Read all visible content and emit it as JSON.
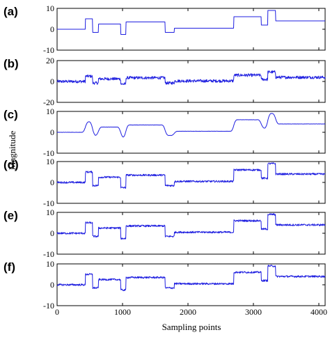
{
  "figure": {
    "xlabel": "Sampling points",
    "ylabel": "Magnitude"
  },
  "chart_data": [
    {
      "panel": "(a)",
      "type": "line",
      "xlim": [
        0,
        4096
      ],
      "ylim": [
        -10,
        10
      ],
      "yticks": [
        "10",
        "0",
        "-10"
      ],
      "xticks": [],
      "series": [
        {
          "color": "#1f1fe0",
          "noise": 0,
          "smooth": 0,
          "steps": [
            [
              0,
              0
            ],
            [
              430,
              5
            ],
            [
              540,
              -1.5
            ],
            [
              630,
              2.5
            ],
            [
              970,
              -2.5
            ],
            [
              1050,
              3.5
            ],
            [
              1650,
              -1.5
            ],
            [
              1790,
              0.5
            ],
            [
              2700,
              6
            ],
            [
              3120,
              2
            ],
            [
              3220,
              9
            ],
            [
              3340,
              4
            ],
            [
              4096,
              4
            ]
          ]
        }
      ]
    },
    {
      "panel": "(b)",
      "type": "line",
      "xlim": [
        0,
        4096
      ],
      "ylim": [
        -20,
        20
      ],
      "yticks": [
        "20",
        "0",
        "-20"
      ],
      "xticks": [],
      "series": [
        {
          "color": "#1f1fe0",
          "noise": 1.4,
          "smooth": 0,
          "steps": [
            [
              0,
              0
            ],
            [
              430,
              5
            ],
            [
              540,
              -1.5
            ],
            [
              630,
              2.5
            ],
            [
              970,
              -2.5
            ],
            [
              1050,
              3.5
            ],
            [
              1650,
              -1.5
            ],
            [
              1790,
              0.5
            ],
            [
              2700,
              6
            ],
            [
              3120,
              2
            ],
            [
              3220,
              9
            ],
            [
              3340,
              4
            ],
            [
              4096,
              4
            ]
          ]
        }
      ]
    },
    {
      "panel": "(c)",
      "type": "line",
      "xlim": [
        0,
        4096
      ],
      "ylim": [
        -10,
        10
      ],
      "yticks": [
        "10",
        "0",
        "-10"
      ],
      "xticks": [],
      "series": [
        {
          "color": "#1f1fe0",
          "noise": 0.05,
          "smooth": 45,
          "steps": [
            [
              0,
              0
            ],
            [
              430,
              5
            ],
            [
              540,
              -1.5
            ],
            [
              630,
              2.5
            ],
            [
              970,
              -2.5
            ],
            [
              1050,
              3.5
            ],
            [
              1650,
              -1.5
            ],
            [
              1790,
              0.5
            ],
            [
              2700,
              6
            ],
            [
              3120,
              2
            ],
            [
              3220,
              9
            ],
            [
              3340,
              4
            ],
            [
              4096,
              4
            ]
          ]
        }
      ]
    },
    {
      "panel": "(d)",
      "type": "line",
      "xlim": [
        0,
        4096
      ],
      "ylim": [
        -10,
        10
      ],
      "yticks": [
        "10",
        "0",
        "-10"
      ],
      "xticks": [],
      "series": [
        {
          "color": "#1f1fe0",
          "noise": 0.45,
          "smooth": 0,
          "steps": [
            [
              0,
              0
            ],
            [
              430,
              5
            ],
            [
              540,
              -1.5
            ],
            [
              630,
              2.5
            ],
            [
              970,
              -2.5
            ],
            [
              1050,
              3.5
            ],
            [
              1650,
              -1.5
            ],
            [
              1790,
              0.5
            ],
            [
              2700,
              6
            ],
            [
              3120,
              2
            ],
            [
              3220,
              9
            ],
            [
              3340,
              4
            ],
            [
              4096,
              4
            ]
          ]
        }
      ]
    },
    {
      "panel": "(e)",
      "type": "line",
      "xlim": [
        0,
        4096
      ],
      "ylim": [
        -10,
        10
      ],
      "yticks": [
        "10",
        "0",
        "-10"
      ],
      "xticks": [],
      "series": [
        {
          "color": "#1f1fe0",
          "noise": 0.45,
          "smooth": 0,
          "steps": [
            [
              0,
              0
            ],
            [
              430,
              5
            ],
            [
              540,
              -1.5
            ],
            [
              630,
              2.5
            ],
            [
              970,
              -2.5
            ],
            [
              1050,
              3.5
            ],
            [
              1650,
              -1.5
            ],
            [
              1790,
              0.5
            ],
            [
              2700,
              6
            ],
            [
              3120,
              2
            ],
            [
              3220,
              9
            ],
            [
              3340,
              4
            ],
            [
              4096,
              4
            ]
          ]
        }
      ]
    },
    {
      "panel": "(f)",
      "type": "line",
      "xlim": [
        0,
        4096
      ],
      "ylim": [
        -10,
        10
      ],
      "yticks": [
        "10",
        "0",
        "-10"
      ],
      "xticks": [
        "0",
        "1000",
        "2000",
        "3000",
        "4000"
      ],
      "series": [
        {
          "color": "#1f1fe0",
          "noise": 0.45,
          "smooth": 0,
          "steps": [
            [
              0,
              0
            ],
            [
              430,
              5
            ],
            [
              540,
              -1.5
            ],
            [
              630,
              2.5
            ],
            [
              970,
              -2.5
            ],
            [
              1050,
              3.5
            ],
            [
              1650,
              -1.5
            ],
            [
              1790,
              0.5
            ],
            [
              2700,
              6
            ],
            [
              3120,
              2
            ],
            [
              3220,
              9
            ],
            [
              3340,
              4
            ],
            [
              4096,
              4
            ]
          ]
        }
      ]
    }
  ]
}
